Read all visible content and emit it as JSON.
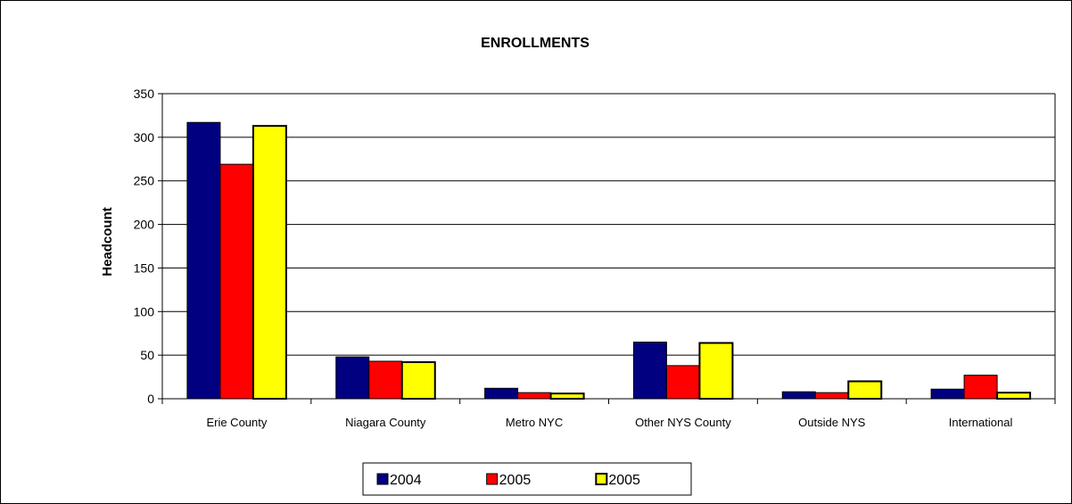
{
  "chart_data": {
    "type": "bar",
    "title": "ENROLLMENTS",
    "xlabel": "",
    "ylabel": "Headcount",
    "ylim": [
      0,
      350
    ],
    "yticks": [
      "0",
      "50",
      "100",
      "150",
      "200",
      "250",
      "300",
      "350"
    ],
    "grid": true,
    "legend_position": "bottom",
    "categories": [
      "Erie County",
      "Niagara County",
      "Metro NYC",
      "Other NYS County",
      "Outside NYS",
      "International"
    ],
    "series": [
      {
        "name": "2004",
        "color": "#000080",
        "values": [
          317,
          48,
          12,
          65,
          8,
          11
        ]
      },
      {
        "name": "2005",
        "color": "#ff0000",
        "values": [
          269,
          43,
          7,
          38,
          7,
          27
        ]
      },
      {
        "name": "2005",
        "color": "#ffff00",
        "values": [
          313,
          42,
          6,
          64,
          20,
          7
        ]
      }
    ]
  }
}
